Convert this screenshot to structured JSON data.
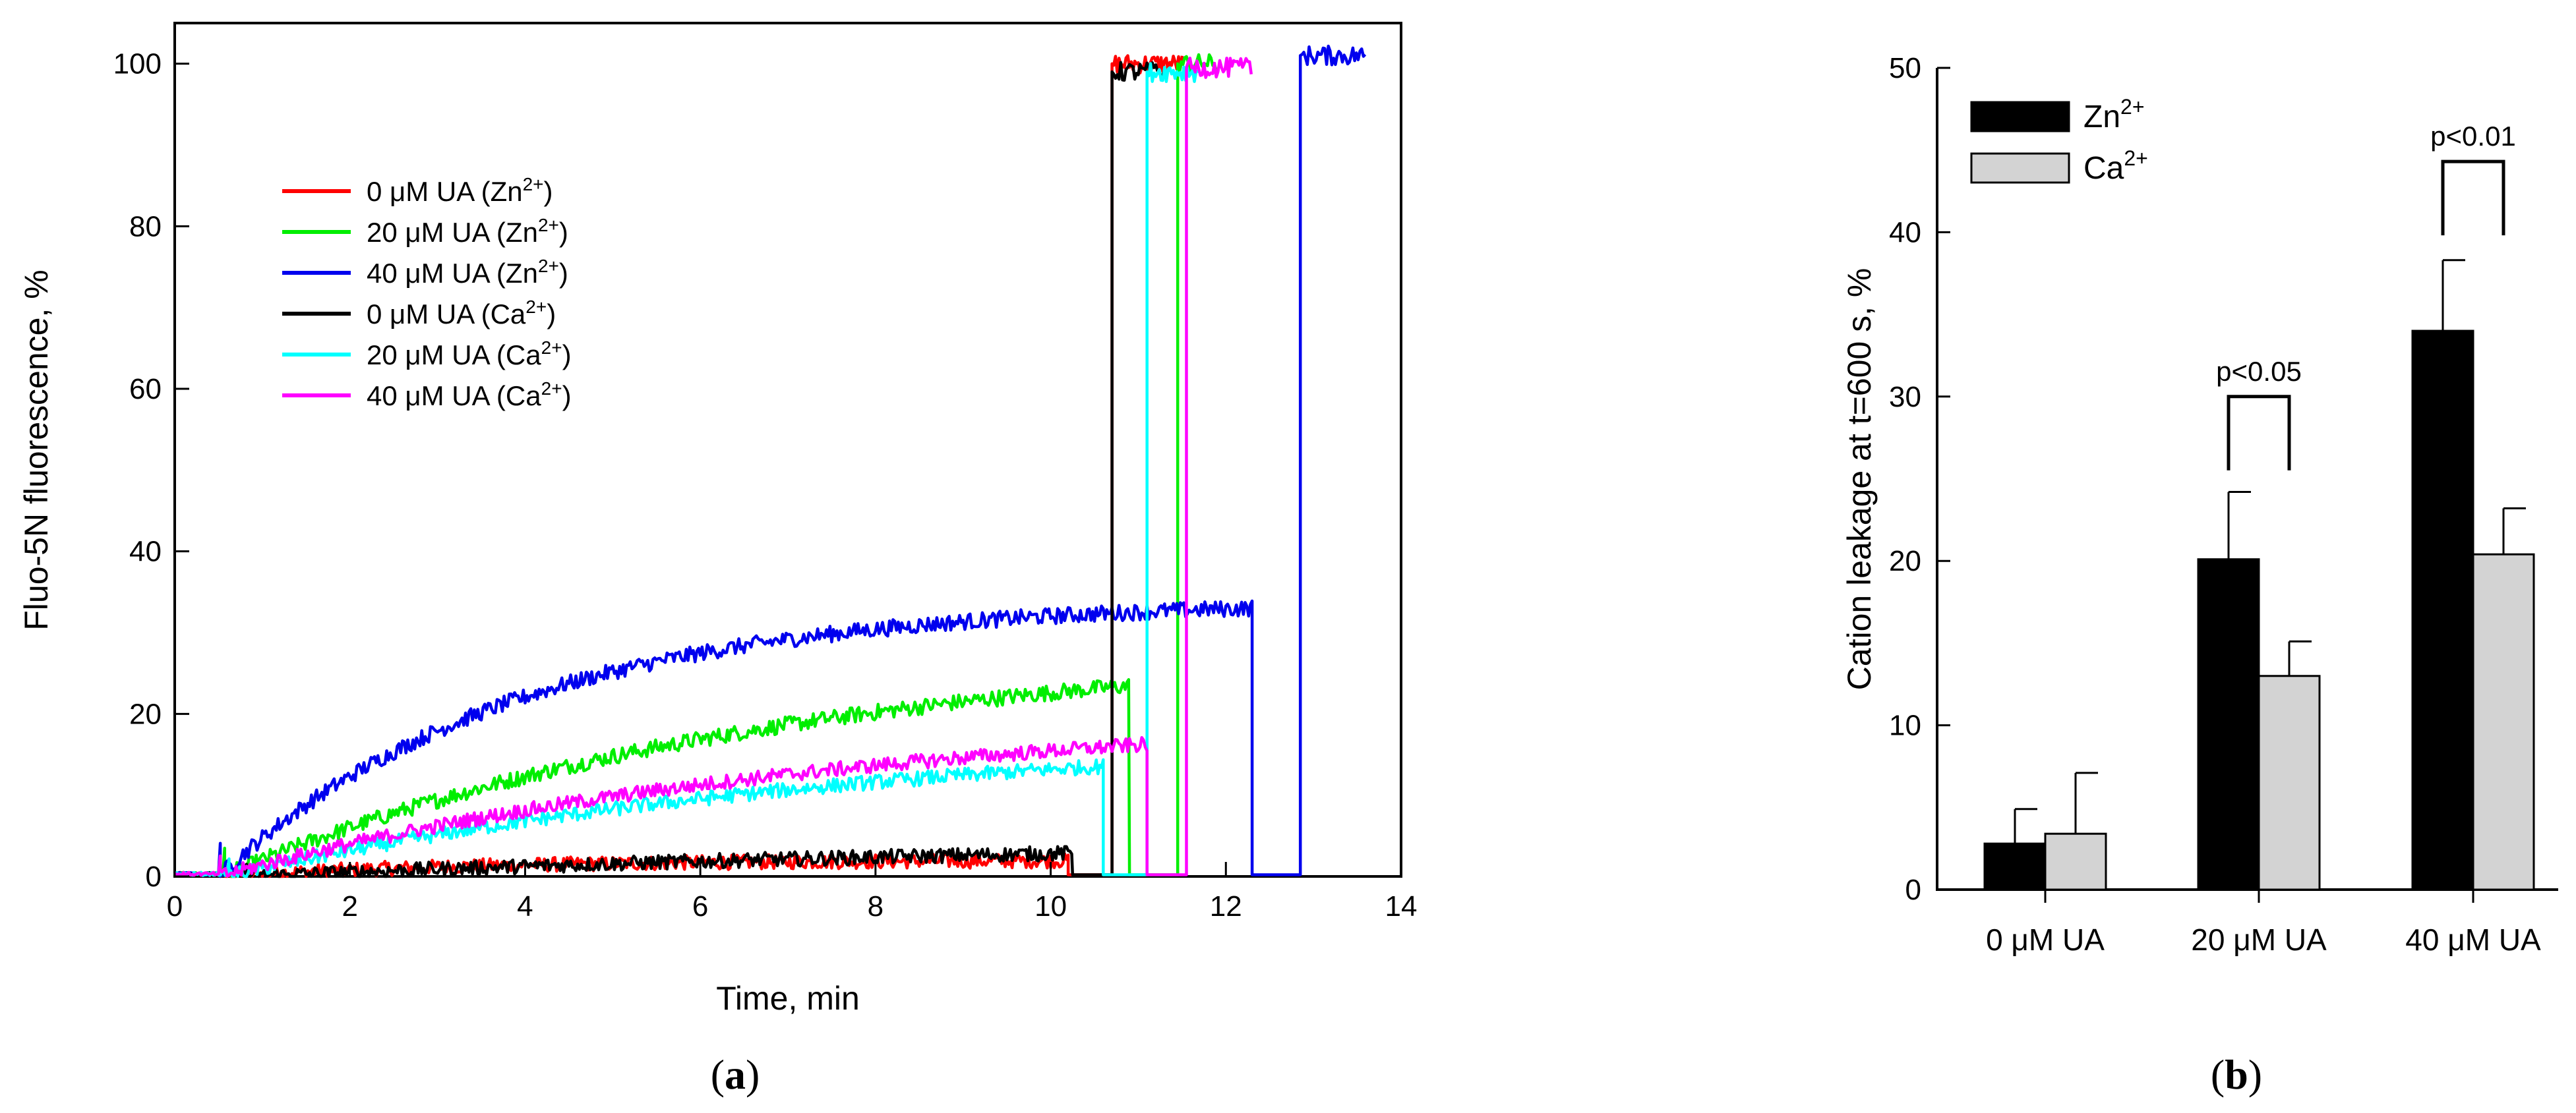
{
  "chart_data": [
    {
      "type": "line",
      "panel_label": "a",
      "xlabel": "Time, min",
      "ylabel": "Fluo-5N fluorescence, %",
      "xlim": [
        0,
        14
      ],
      "ylim": [
        0,
        105
      ],
      "x_ticks": [
        0,
        2,
        4,
        6,
        8,
        10,
        12,
        14
      ],
      "y_ticks": [
        0,
        20,
        40,
        60,
        80,
        100
      ],
      "legend": "left",
      "series": [
        {
          "name": "0 μM UA (Zn2+)",
          "name_text": "0 μM UA (Zn",
          "name_sup": "2+",
          "name_end": ")",
          "color": "#ff0000",
          "t_add": 0.5,
          "plateau": 2,
          "rise_k": 0.35,
          "noise": 0.9,
          "t_end": 10.2,
          "t_jump": 10.7,
          "jump_value": 100,
          "t_final": 11.5,
          "x_ticks_note": ""
        },
        {
          "name": "20 μM UA (Zn2+)",
          "name_text": "20 μM UA (Zn",
          "name_sup": "2+",
          "name_end": ")",
          "color": "#00ee00",
          "t_add": 0.55,
          "plateau": 29,
          "rise_k": 0.16,
          "noise": 1.0,
          "t_end": 10.9,
          "t_jump": 11.45,
          "jump_value": 100,
          "t_final": 11.9
        },
        {
          "name": "40 μM UA (Zn2+)",
          "name_text": "40 μM UA (Zn",
          "name_sup": "2+",
          "name_end": ")",
          "color": "#0000ee",
          "t_add": 0.5,
          "plateau": 34,
          "rise_k": 0.3,
          "noise": 1.0,
          "t_end": 12.3,
          "t_jump": 12.85,
          "jump_value": 101,
          "t_final": 13.6
        },
        {
          "name": "0 μM UA (Ca2+)",
          "name_text": "0 μM UA (Ca",
          "name_sup": "2+",
          "name_end": ")",
          "color": "#000000",
          "t_add": 0.8,
          "plateau": 5,
          "rise_k": 0.09,
          "noise": 0.9,
          "t_end": 10.25,
          "t_jump": 10.7,
          "jump_value": 99,
          "t_final": 11.3
        },
        {
          "name": "20 μM UA (Ca2+)",
          "name_text": "20 μM UA (Ca",
          "name_sup": "2+",
          "name_end": ")",
          "color": "#00ffff",
          "t_add": 0.6,
          "plateau": 18,
          "rise_k": 0.14,
          "noise": 0.9,
          "t_end": 10.6,
          "t_jump": 11.1,
          "jump_value": 99,
          "t_final": 11.7
        },
        {
          "name": "40 μM UA (Ca2+)",
          "name_text": "40 μM UA (Ca",
          "name_sup": "2+",
          "name_end": ")",
          "color": "#ff00ff",
          "t_add": 0.5,
          "plateau": 21,
          "rise_k": 0.14,
          "noise": 0.9,
          "t_end": 11.1,
          "t_jump": 11.55,
          "jump_value": 99.5,
          "t_final": 12.3
        }
      ]
    },
    {
      "type": "bar",
      "panel_label": "b",
      "ylabel": "Cation leakage at t=600 s, %",
      "ylim": [
        0,
        50
      ],
      "y_ticks": [
        0,
        10,
        20,
        30,
        40,
        50
      ],
      "categories": [
        "0 μM UA",
        "20 μM UA",
        "40 μM UA"
      ],
      "legend": "top-left",
      "series": [
        {
          "name": "Zn2+",
          "name_text": "Zn",
          "name_sup": "2+",
          "color": "#000000",
          "values": [
            2.8,
            20.1,
            34.0
          ],
          "errors": [
            2.1,
            4.1,
            4.3
          ]
        },
        {
          "name": "Ca2+",
          "name_text": "Ca",
          "name_sup": "2+",
          "color": "#d3d3d3",
          "values": [
            3.4,
            13.0,
            20.4
          ],
          "errors": [
            3.7,
            2.1,
            2.8
          ]
        }
      ],
      "annotations": [
        {
          "category": 1,
          "text": "p<0.05",
          "bracket_value": 30.0
        },
        {
          "category": 2,
          "text": "p<0.01",
          "bracket_value": 44.3
        }
      ]
    }
  ]
}
